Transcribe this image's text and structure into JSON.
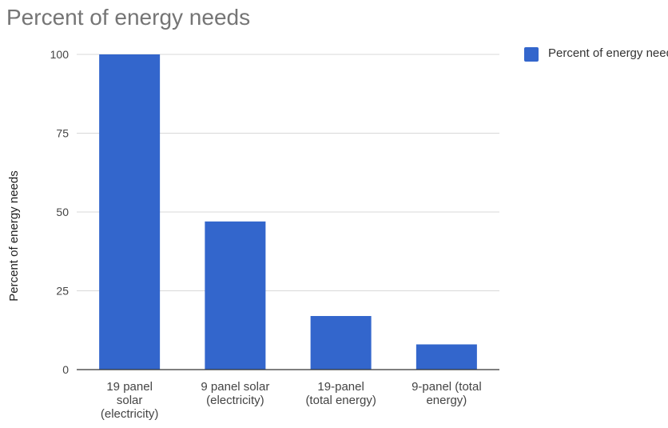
{
  "chart_data": {
    "type": "bar",
    "title": "Percent of energy needs",
    "xlabel": "",
    "ylabel": "Percent of energy needs",
    "categories": [
      [
        "19 panel",
        "solar",
        "(electricity)"
      ],
      [
        "9 panel solar",
        "(electricity)"
      ],
      [
        "19-panel",
        "(total energy)"
      ],
      [
        "9-panel (total",
        "energy)"
      ]
    ],
    "series": [
      {
        "name": "Percent of energy needs",
        "values": [
          100,
          47,
          17,
          8
        ]
      }
    ],
    "ylim": [
      0,
      100
    ],
    "yticks": [
      "0",
      "25",
      "50",
      "75",
      "100"
    ],
    "grid": true,
    "legend": "right",
    "colors": {
      "bar": "#3366cc",
      "grid": "#d9d9d9",
      "axis": "#333333"
    }
  }
}
